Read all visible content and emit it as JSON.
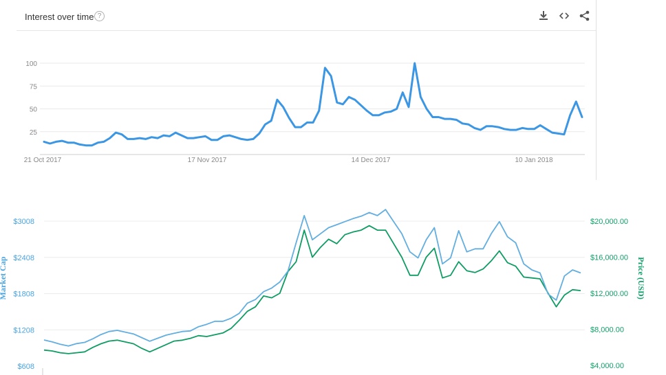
{
  "trends": {
    "title": "Interest over time",
    "help_symbol": "?",
    "tools": [
      "download-icon",
      "embed-icon",
      "share-icon"
    ]
  },
  "chart_data": [
    {
      "type": "line",
      "title": "Interest over time",
      "xlabel": "",
      "ylabel": "",
      "ylim": [
        0,
        100
      ],
      "y_ticks": [
        25,
        50,
        75,
        100
      ],
      "x_tick_labels": [
        "21 Oct 2017",
        "17 Nov 2017",
        "14 Dec 2017",
        "10 Jan 2018"
      ],
      "grid": true,
      "line_color": "#3b96e3",
      "series": [
        {
          "values": [
            14,
            12,
            14,
            15,
            13,
            13,
            11,
            10,
            10,
            13,
            14,
            18,
            24,
            22,
            17,
            17,
            18,
            17,
            19,
            18,
            21,
            20,
            24,
            21,
            18,
            18,
            19,
            20,
            16,
            16,
            20,
            21,
            19,
            17,
            16,
            17,
            23,
            33,
            37,
            60,
            52,
            40,
            30,
            30,
            35,
            35,
            48,
            95,
            86,
            57,
            55,
            63,
            60,
            54,
            48,
            43,
            43,
            46,
            47,
            50,
            68,
            52,
            100,
            63,
            50,
            41,
            41,
            39,
            39,
            38,
            34,
            33,
            29,
            27,
            31,
            31,
            30,
            28,
            27,
            27,
            29,
            28,
            28,
            32,
            28,
            24,
            23,
            22,
            43,
            58,
            41
          ]
        }
      ]
    },
    {
      "type": "line",
      "title": "",
      "xlabel": "",
      "ylabel": "Market Cap",
      "y2label": "Price (USD)",
      "ylim": [
        608,
        3408
      ],
      "y_ticks": [
        "$608",
        "$1208",
        "$1808",
        "$2408",
        "$3008"
      ],
      "y_tick_values": [
        608,
        1208,
        1808,
        2408,
        3008
      ],
      "y2lim": [
        4000,
        25000
      ],
      "y2_ticks": [
        "$4,000.00",
        "$8,000.00",
        "$12,000.00",
        "$16,000.00",
        "$20,000.00"
      ],
      "y2_tick_values": [
        4000,
        8000,
        12000,
        16000,
        20000
      ],
      "grid": true,
      "series": [
        {
          "name": "Market Cap",
          "axis": "left",
          "color": "#62aee0",
          "values": [
            1040,
            1010,
            970,
            940,
            980,
            1000,
            1060,
            1130,
            1180,
            1200,
            1170,
            1140,
            1080,
            1020,
            1070,
            1120,
            1150,
            1180,
            1190,
            1260,
            1300,
            1350,
            1350,
            1400,
            1480,
            1650,
            1710,
            1840,
            1900,
            2000,
            2180,
            2650,
            3100,
            2700,
            2800,
            2900,
            2950,
            3000,
            3050,
            3090,
            3150,
            3100,
            3200,
            3000,
            2800,
            2500,
            2400,
            2700,
            2900,
            2300,
            2400,
            2850,
            2500,
            2550,
            2550,
            2800,
            3000,
            2750,
            2650,
            2300,
            2200,
            2150,
            1800,
            1700,
            2100,
            2200,
            2150
          ]
        },
        {
          "name": "Price (USD)",
          "axis": "right",
          "color": "#0e9c63",
          "values": [
            5700,
            5600,
            5400,
            5300,
            5400,
            5500,
            6000,
            6400,
            6700,
            6800,
            6600,
            6400,
            5900,
            5500,
            5900,
            6300,
            6700,
            6800,
            7000,
            7300,
            7200,
            7400,
            7600,
            8100,
            9000,
            10000,
            10500,
            11700,
            11500,
            12000,
            14400,
            15500,
            19000,
            16000,
            17100,
            18000,
            17500,
            18500,
            18800,
            19000,
            19500,
            19000,
            19000,
            17500,
            16000,
            14000,
            14000,
            16000,
            17000,
            13700,
            14000,
            15500,
            14500,
            14300,
            14700,
            15600,
            16700,
            15400,
            15000,
            13800,
            13700,
            13600,
            12000,
            10500,
            11800,
            12400,
            12300
          ]
        }
      ]
    }
  ]
}
